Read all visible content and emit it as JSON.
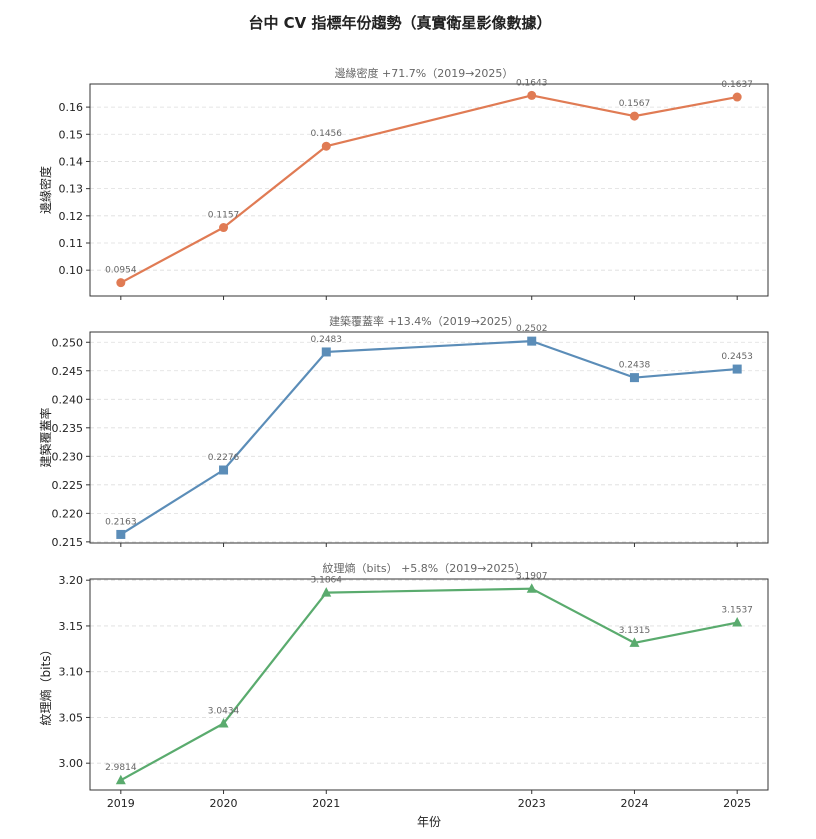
{
  "figure_title": "台中 CV 指標年份趨勢（真實衛星影像數據）",
  "xlabel": "年份",
  "chart_data": [
    {
      "type": "line",
      "title": "邊緣密度  +71.7%（2019→2025）",
      "ylabel": "邊緣密度",
      "x": [
        2019,
        2020,
        2021,
        2023,
        2024,
        2025
      ],
      "values": [
        0.0954,
        0.1157,
        0.1456,
        0.1643,
        0.1567,
        0.1637
      ],
      "labels": [
        "0.0954",
        "0.1157",
        "0.1456",
        "0.1643",
        "0.1567",
        "0.1637"
      ],
      "yticks": [
        0.1,
        0.11,
        0.12,
        0.13,
        0.14,
        0.15,
        0.16
      ],
      "ytick_labels": [
        "0.10",
        "0.11",
        "0.12",
        "0.13",
        "0.14",
        "0.15",
        "0.16"
      ],
      "ylim": [
        0.0905,
        0.1685
      ],
      "color": "#e07b54",
      "marker": "circle",
      "grid": true
    },
    {
      "type": "line",
      "title": "建築覆蓋率  +13.4%（2019→2025）",
      "ylabel": "建築覆蓋率",
      "x": [
        2019,
        2020,
        2021,
        2023,
        2024,
        2025
      ],
      "values": [
        0.2163,
        0.2276,
        0.2483,
        0.2502,
        0.2438,
        0.2453
      ],
      "labels": [
        "0.2163",
        "0.2276",
        "0.2483",
        "0.2502",
        "0.2438",
        "0.2453"
      ],
      "yticks": [
        0.215,
        0.22,
        0.225,
        0.23,
        0.235,
        0.24,
        0.245,
        0.25
      ],
      "ytick_labels": [
        "0.215",
        "0.220",
        "0.225",
        "0.230",
        "0.235",
        "0.240",
        "0.245",
        "0.250"
      ],
      "ylim": [
        0.2148,
        0.2518
      ],
      "color": "#5b8db8",
      "marker": "square",
      "grid": true
    },
    {
      "type": "line",
      "title": "紋理熵（bits）  +5.8%（2019→2025）",
      "ylabel": "紋理熵（bits）",
      "x": [
        2019,
        2020,
        2021,
        2023,
        2024,
        2025
      ],
      "values": [
        2.9814,
        3.0434,
        3.1864,
        3.1907,
        3.1315,
        3.1537
      ],
      "labels": [
        "2.9814",
        "3.0434",
        "3.1864",
        "3.1907",
        "3.1315",
        "3.1537"
      ],
      "yticks": [
        3.0,
        3.05,
        3.1,
        3.15,
        3.2
      ],
      "ytick_labels": [
        "3.00",
        "3.05",
        "3.10",
        "3.15",
        "3.20"
      ],
      "ylim": [
        2.9707,
        3.2013
      ],
      "color": "#5aab6e",
      "marker": "triangle",
      "grid": true
    }
  ],
  "xticks": [
    2019,
    2020,
    2021,
    2023,
    2024,
    2025
  ],
  "xtick_labels": [
    "2019",
    "2020",
    "2021",
    "2023",
    "2024",
    "2025"
  ],
  "xlim": [
    2018.7,
    2025.3
  ]
}
